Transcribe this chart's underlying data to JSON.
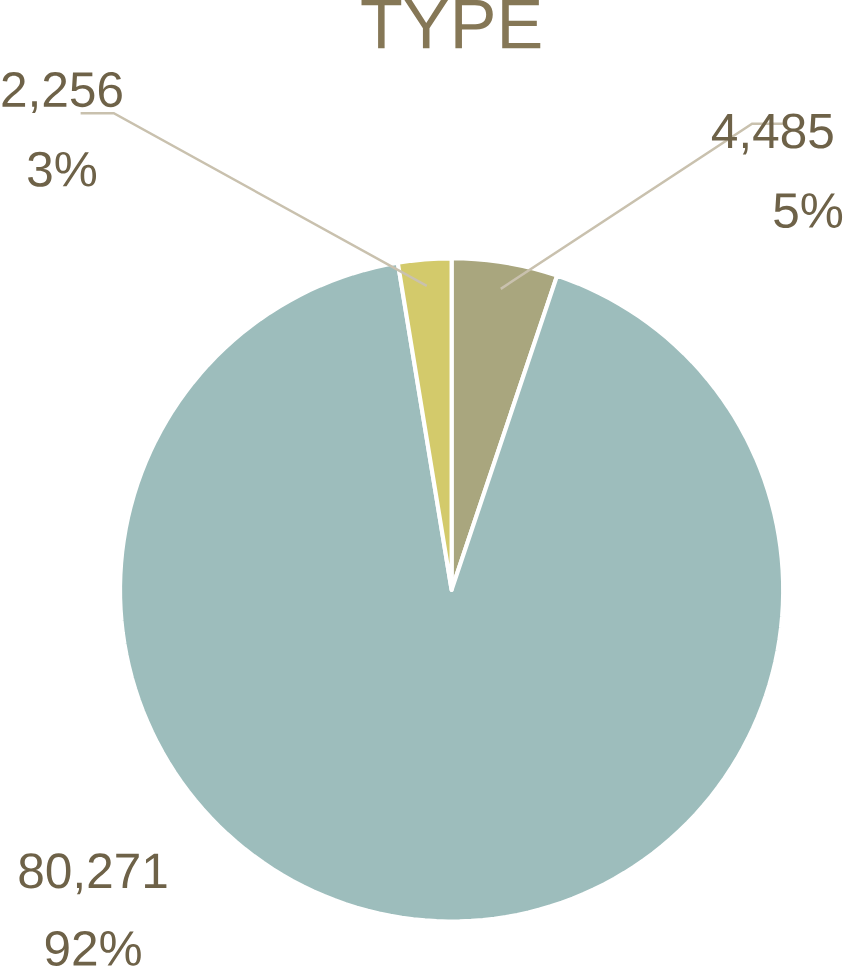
{
  "chart_data": {
    "type": "pie",
    "title": "TYPE",
    "categories": [
      null,
      null,
      null
    ],
    "values": [
      4485,
      80271,
      2256
    ],
    "colors": [
      "#a9a67e",
      "#9dbdbc",
      "#d3ca6b"
    ],
    "value_labels": [
      "4,485",
      "80,271",
      "2,256"
    ],
    "annotations": [
      "5%",
      "92%",
      "3%"
    ]
  }
}
